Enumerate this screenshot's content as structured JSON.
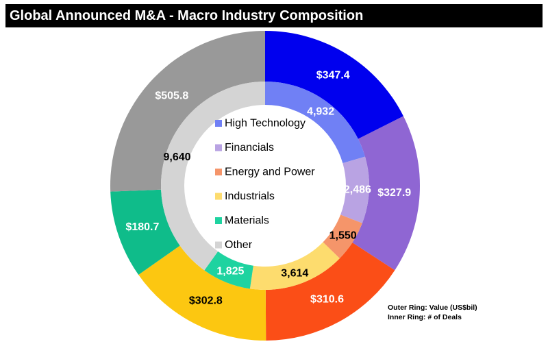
{
  "chart_data": {
    "type": "donut",
    "title": "Global Announced M&A - Macro Industry Composition",
    "legend": [
      {
        "label": "High Technology",
        "color": "#7080f5"
      },
      {
        "label": "Financials",
        "color": "#b9a3e3"
      },
      {
        "label": "Energy and Power",
        "color": "#f5956a"
      },
      {
        "label": "Industrials",
        "color": "#fddc6e"
      },
      {
        "label": "Materials",
        "color": "#1ed3a0"
      },
      {
        "label": "Other",
        "color": "#d4d4d4"
      }
    ],
    "outer_ring": {
      "name": "Value (US$bil)",
      "values": [
        347.4,
        327.9,
        310.6,
        302.8,
        180.7,
        505.8
      ],
      "labels": [
        "$347.4",
        "$327.9",
        "$310.6",
        "$302.8",
        "$180.7",
        "$505.8"
      ],
      "colors": [
        "#0000ee",
        "#8f66d3",
        "#fb4e17",
        "#fcc711",
        "#0fbc8a",
        "#999999"
      ],
      "label_colors": [
        "#ffffff",
        "#ffffff",
        "#ffffff",
        "#000000",
        "#ffffff",
        "#ffffff"
      ]
    },
    "inner_ring": {
      "name": "# of Deals",
      "values": [
        4932,
        2486,
        1550,
        3614,
        1825,
        9640
      ],
      "labels": [
        "4,932",
        "2,486",
        "1,550",
        "3,614",
        "1,825",
        "9,640"
      ],
      "colors": [
        "#7080f5",
        "#b9a3e3",
        "#f5956a",
        "#fddc6e",
        "#1ed3a0",
        "#d4d4d4"
      ],
      "label_colors": [
        "#ffffff",
        "#ffffff",
        "#000000",
        "#000000",
        "#ffffff",
        "#000000"
      ]
    },
    "notes": {
      "outer": "Outer Ring: Value (US$bil)",
      "inner": "Inner Ring: # of Deals"
    }
  }
}
